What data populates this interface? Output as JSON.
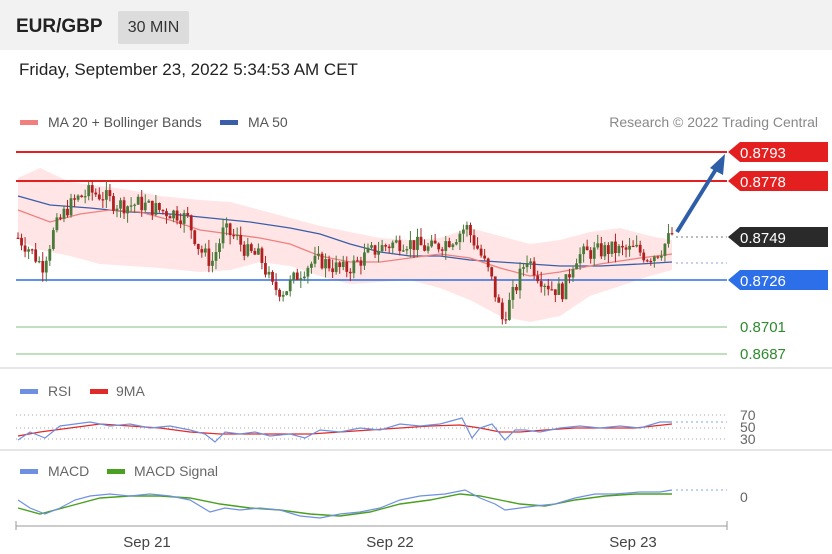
{
  "header": {
    "symbol": "EUR/GBP",
    "interval": "30 MIN"
  },
  "timestamp": "Friday, September 23, 2022 5:34:53 AM CET",
  "colors": {
    "ma20": "#f08080",
    "ma50": "#3a5ea8",
    "bands_fill": "#ffe0e0",
    "resistance": "#e41f1f",
    "pivot": "#2c6fe8",
    "support": "#7fbf7f",
    "current": "#2a2a2a",
    "candle_up": "#4a7a3a",
    "candle_down": "#b02020",
    "rsi": "#6f8fe0",
    "rsi_ma": "#e02a2a",
    "macd": "#6f8fe0",
    "macd_signal": "#4aa020",
    "arrow": "#2e5ea8"
  },
  "main_chart": {
    "legend": [
      {
        "name": "MA 20 + Bollinger Bands",
        "color": "#f08080"
      },
      {
        "name": "MA 50",
        "color": "#3a5ea8"
      }
    ],
    "copyright": "Research © 2022 Trading Central",
    "levels": [
      {
        "label": "0.8793",
        "value": 0.8793,
        "type": "resistance"
      },
      {
        "label": "0.8778",
        "value": 0.8778,
        "type": "resistance"
      },
      {
        "label": "0.8749",
        "value": 0.8749,
        "type": "current"
      },
      {
        "label": "0.8726",
        "value": 0.8726,
        "type": "pivot"
      },
      {
        "label": "0.8701",
        "value": 0.8701,
        "type": "support"
      },
      {
        "label": "0.8687",
        "value": 0.8687,
        "type": "support"
      }
    ],
    "x_ticks": [
      "Sep 21",
      "Sep 22",
      "Sep 23"
    ]
  },
  "rsi_panel": {
    "legend": [
      {
        "name": "RSI",
        "color": "#6f8fe0"
      },
      {
        "name": "9MA",
        "color": "#e02a2a"
      }
    ],
    "levels": [
      "70",
      "50",
      "30"
    ]
  },
  "macd_panel": {
    "legend": [
      {
        "name": "MACD",
        "color": "#6f8fe0"
      },
      {
        "name": "MACD Signal",
        "color": "#4aa020"
      }
    ],
    "zero_label": "0"
  },
  "chart_data": {
    "type": "candlestick",
    "y_axis_levels": [
      0.8793,
      0.8778,
      0.8749,
      0.8726,
      0.8701,
      0.8687
    ],
    "x_tick_labels": [
      "Sep 21",
      "Sep 22",
      "Sep 23"
    ],
    "close_path": [
      0.8748,
      0.8742,
      0.8733,
      0.8752,
      0.8763,
      0.8769,
      0.8772,
      0.877,
      0.8766,
      0.8765,
      0.8766,
      0.8764,
      0.8762,
      0.8761,
      0.8758,
      0.8742,
      0.8735,
      0.8752,
      0.8748,
      0.874,
      0.8738,
      0.8722,
      0.872,
      0.8728,
      0.8734,
      0.8736,
      0.8733,
      0.8731,
      0.8735,
      0.874,
      0.8743,
      0.8745,
      0.8746,
      0.8744,
      0.8742,
      0.8745,
      0.8748,
      0.8754,
      0.8742,
      0.8728,
      0.8705,
      0.872,
      0.8738,
      0.8728,
      0.8722,
      0.872,
      0.8738,
      0.874,
      0.8741,
      0.8742,
      0.8741,
      0.8742,
      0.8738,
      0.8741,
      0.875
    ]
  }
}
